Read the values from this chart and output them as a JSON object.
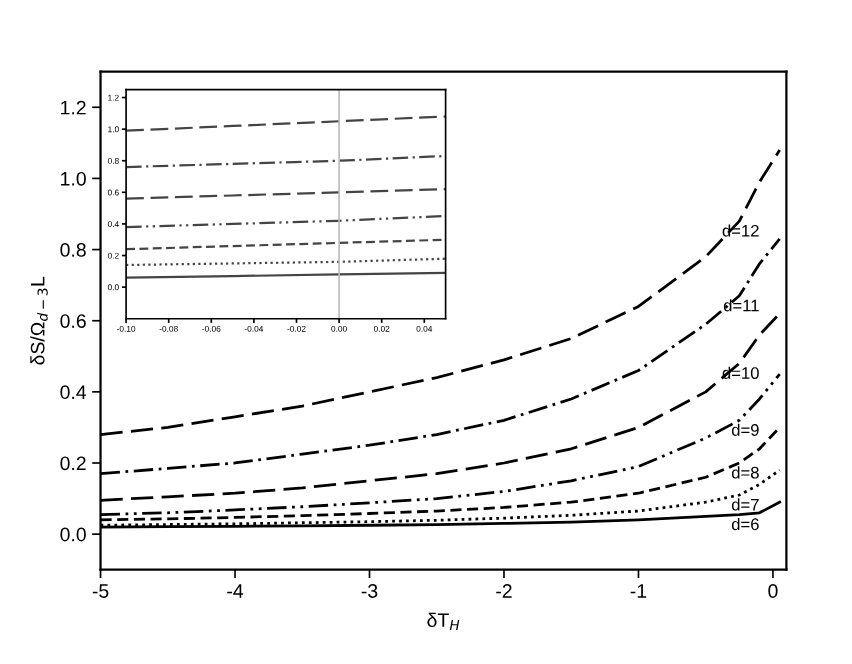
{
  "chart_data": [
    {
      "type": "line",
      "xlabel": "δT$_{H}$",
      "ylabel": "δS/Ω$_{d−3}$L",
      "xlim": [
        -5,
        0.1
      ],
      "ylim": [
        -0.1,
        1.3
      ],
      "xticks": [
        -5,
        -4,
        -3,
        -2,
        -1,
        0
      ],
      "yticks": [
        {
          "value": 0,
          "label": "0.0"
        },
        {
          "value": 0.2,
          "label": "0.2"
        },
        {
          "value": 0.4,
          "label": "0.4"
        },
        {
          "value": 0.6,
          "label": "0.6"
        },
        {
          "value": 0.8,
          "label": "0.8"
        },
        {
          "value": 1.0,
          "label": "1.0"
        },
        {
          "value": 1.2,
          "label": "1.2"
        }
      ],
      "x": [
        -5,
        -4.5,
        -4,
        -3.5,
        -3,
        -2.5,
        -2,
        -1.5,
        -1,
        -0.5,
        -0.25,
        -0.1,
        0.05
      ],
      "grid": false,
      "legend": false,
      "series": [
        {
          "name": "d=12",
          "color": "#000000",
          "line_style": "longdash",
          "values": [
            0.28,
            0.3,
            0.33,
            0.36,
            0.4,
            0.44,
            0.49,
            0.55,
            0.64,
            0.78,
            0.88,
            0.99,
            1.08
          ]
        },
        {
          "name": "d=11",
          "color": "#000000",
          "line_style": "dashdot",
          "values": [
            0.17,
            0.185,
            0.2,
            0.225,
            0.25,
            0.28,
            0.32,
            0.38,
            0.46,
            0.59,
            0.67,
            0.76,
            0.83
          ]
        },
        {
          "name": "d=10",
          "color": "#000000",
          "line_style": "longdash",
          "values": [
            0.095,
            0.105,
            0.115,
            0.13,
            0.15,
            0.17,
            0.2,
            0.24,
            0.3,
            0.4,
            0.48,
            0.56,
            0.62
          ]
        },
        {
          "name": "d=9",
          "color": "#000000",
          "line_style": "dashdotdot",
          "values": [
            0.055,
            0.06,
            0.068,
            0.077,
            0.088,
            0.1,
            0.12,
            0.15,
            0.19,
            0.27,
            0.32,
            0.38,
            0.45
          ]
        },
        {
          "name": "d=8",
          "color": "#000000",
          "line_style": "dashed",
          "values": [
            0.04,
            0.043,
            0.047,
            0.052,
            0.058,
            0.065,
            0.075,
            0.09,
            0.115,
            0.16,
            0.2,
            0.24,
            0.3
          ]
        },
        {
          "name": "d=7",
          "color": "#000000",
          "line_style": "dotted",
          "values": [
            0.025,
            0.027,
            0.029,
            0.032,
            0.035,
            0.039,
            0.045,
            0.053,
            0.065,
            0.09,
            0.11,
            0.14,
            0.18
          ]
        },
        {
          "name": "d=6",
          "color": "#000000",
          "line_style": "solid",
          "values": [
            0.02,
            0.021,
            0.022,
            0.023,
            0.025,
            0.027,
            0.03,
            0.034,
            0.04,
            0.05,
            0.055,
            0.06,
            0.09
          ]
        }
      ]
    },
    {
      "type": "line",
      "xlim": [
        -0.1,
        0.05
      ],
      "ylim": [
        -0.2,
        1.25
      ],
      "xticks": [
        {
          "value": -0.1,
          "label": "-0.10"
        },
        {
          "value": -0.08,
          "label": "-0.08"
        },
        {
          "value": -0.06,
          "label": "-0.06"
        },
        {
          "value": -0.04,
          "label": "-0.04"
        },
        {
          "value": -0.02,
          "label": "-0.02"
        },
        {
          "value": 0,
          "label": "0.00"
        },
        {
          "value": 0.02,
          "label": "0.02"
        },
        {
          "value": 0.04,
          "label": "0.04"
        }
      ],
      "yticks": [
        {
          "value": 0,
          "label": "0.0"
        },
        {
          "value": 0.2,
          "label": "0.2"
        },
        {
          "value": 0.4,
          "label": "0.4"
        },
        {
          "value": 0.6,
          "label": "0.6"
        },
        {
          "value": 0.8,
          "label": "0.8"
        },
        {
          "value": 1.0,
          "label": "1.0"
        },
        {
          "value": 1.2,
          "label": "1.2"
        }
      ],
      "x": [
        -0.1,
        -0.05,
        0,
        0.05
      ],
      "ref_lines": [
        {
          "axis": "x",
          "value": 0,
          "color": "#bbbbbb"
        }
      ],
      "series": [
        {
          "color": "#444444",
          "line_style": "longdash",
          "values": [
            0.99,
            1.02,
            1.05,
            1.08
          ]
        },
        {
          "color": "#444444",
          "line_style": "dashdot",
          "values": [
            0.76,
            0.78,
            0.8,
            0.83
          ]
        },
        {
          "color": "#444444",
          "line_style": "longdash",
          "values": [
            0.56,
            0.58,
            0.6,
            0.62
          ]
        },
        {
          "color": "#444444",
          "line_style": "dashdotdot",
          "values": [
            0.38,
            0.4,
            0.42,
            0.45
          ]
        },
        {
          "color": "#444444",
          "line_style": "dashed",
          "values": [
            0.24,
            0.26,
            0.28,
            0.3
          ]
        },
        {
          "color": "#444444",
          "line_style": "dotted",
          "values": [
            0.14,
            0.15,
            0.16,
            0.18
          ]
        },
        {
          "color": "#444444",
          "line_style": "solid",
          "values": [
            0.06,
            0.07,
            0.08,
            0.09
          ]
        }
      ]
    }
  ]
}
